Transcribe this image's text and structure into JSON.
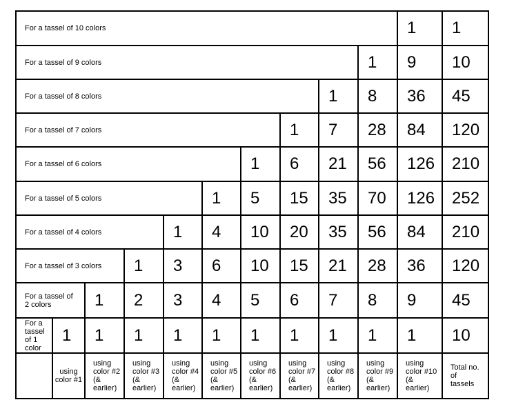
{
  "rows": [
    {
      "label": "For a tassel of 10 colors",
      "start": 10,
      "values": [
        "1"
      ],
      "total": "1"
    },
    {
      "label": "For a tassel of 9 colors",
      "start": 9,
      "values": [
        "1",
        "9"
      ],
      "total": "10"
    },
    {
      "label": "For a tassel of 8 colors",
      "start": 8,
      "values": [
        "1",
        "8",
        "36"
      ],
      "total": "45"
    },
    {
      "label": "For a tassel of 7 colors",
      "start": 7,
      "values": [
        "1",
        "7",
        "28",
        "84"
      ],
      "total": "120"
    },
    {
      "label": "For a tassel of 6 colors",
      "start": 6,
      "values": [
        "1",
        "6",
        "21",
        "56",
        "126"
      ],
      "total": "210"
    },
    {
      "label": "For a tassel of 5 colors",
      "start": 5,
      "values": [
        "1",
        "5",
        "15",
        "35",
        "70",
        "126"
      ],
      "total": "252"
    },
    {
      "label": "For a tassel of 4 colors",
      "start": 4,
      "values": [
        "1",
        "4",
        "10",
        "20",
        "35",
        "56",
        "84"
      ],
      "total": "210"
    },
    {
      "label": "For a tassel of 3 colors",
      "start": 3,
      "values": [
        "1",
        "3",
        "6",
        "10",
        "15",
        "21",
        "28",
        "36"
      ],
      "total": "120"
    },
    {
      "label": "For a tassel of 2 colors",
      "start": 2,
      "values": [
        "1",
        "2",
        "3",
        "4",
        "5",
        "6",
        "7",
        "8",
        "9"
      ],
      "total": "45"
    },
    {
      "label": "For a tassel of 1 color",
      "start": 1,
      "values": [
        "1",
        "1",
        "1",
        "1",
        "1",
        "1",
        "1",
        "1",
        "1",
        "1"
      ],
      "total": "10"
    }
  ],
  "column_headers": [
    "using color #1",
    "using color #2 (& earlier)",
    "using color #3 (& earlier)",
    "using color #4 (& earlier)",
    "using color #5 (& earlier)",
    "using color #6 (& earlier)",
    "using color #7 (& earlier)",
    "using color #8 (& earlier)",
    "using color #9 (& earlier)",
    "using color #10 (& earlier)"
  ],
  "total_header": "Total no. of tassels"
}
